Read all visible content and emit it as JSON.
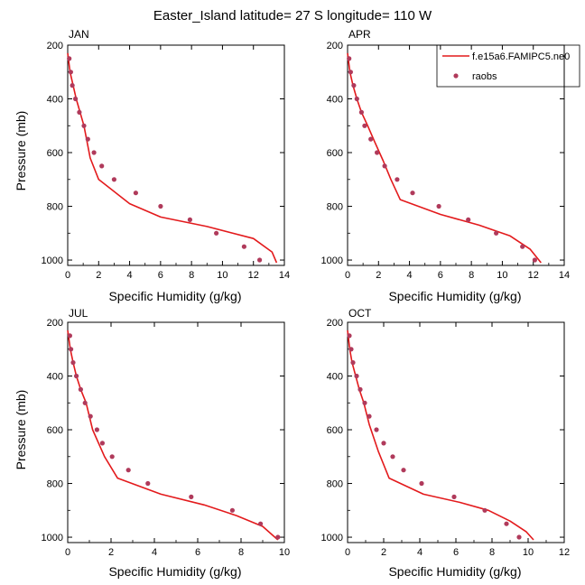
{
  "figure": {
    "title": "Easter_Island  latitude= 27 S longitude= 110 W"
  },
  "colors": {
    "model": "#e31a1c",
    "obs": "#b03a5b",
    "axis": "#000000"
  },
  "chart_data": [
    {
      "type": "line",
      "panel_label": "JAN",
      "xlabel": "Specific Humidity (g/kg)",
      "ylabel": "Pressure (mb)",
      "xlim": [
        0,
        14
      ],
      "ylim": [
        1020,
        200
      ],
      "xticks": [
        0,
        2,
        4,
        6,
        8,
        10,
        12,
        14
      ],
      "yticks": [
        200,
        400,
        600,
        800,
        1000
      ],
      "legend": {
        "placement": "top-right",
        "entries": [
          "f.e15a6.FAMIPC5.ne0",
          "raobs"
        ]
      },
      "series": [
        {
          "name": "f.e15a6.FAMIPC5.ne0",
          "kind": "line",
          "x": [
            0.0,
            0.15,
            0.35,
            0.55,
            0.8,
            1.05,
            1.45,
            2.0,
            4.0,
            6.0,
            9.0,
            12.0,
            13.2,
            13.5
          ],
          "y": [
            230,
            300,
            350,
            400,
            450,
            500,
            620,
            700,
            790,
            840,
            875,
            920,
            970,
            1010
          ]
        },
        {
          "name": "raobs",
          "kind": "scatter",
          "x": [
            0.1,
            0.2,
            0.3,
            0.5,
            0.75,
            1.05,
            1.3,
            1.7,
            2.2,
            3.0,
            4.4,
            6.0,
            7.9,
            9.6,
            11.4,
            12.4
          ],
          "y": [
            250,
            300,
            350,
            400,
            450,
            500,
            550,
            600,
            650,
            700,
            750,
            800,
            850,
            900,
            950,
            1000
          ]
        }
      ]
    },
    {
      "type": "line",
      "panel_label": "APR",
      "xlabel": "Specific Humidity (g/kg)",
      "ylabel": "",
      "xlim": [
        0,
        14
      ],
      "ylim": [
        1020,
        200
      ],
      "xticks": [
        0,
        2,
        4,
        6,
        8,
        10,
        12,
        14
      ],
      "yticks": [
        200,
        400,
        600,
        800,
        1000
      ],
      "series": [
        {
          "name": "f.e15a6.FAMIPC5.ne0",
          "kind": "line",
          "x": [
            0.0,
            0.15,
            0.35,
            0.6,
            0.9,
            1.3,
            1.75,
            2.3,
            2.8,
            3.4,
            6.0,
            8.5,
            10.5,
            11.8,
            12.5
          ],
          "y": [
            230,
            300,
            350,
            400,
            450,
            500,
            560,
            630,
            700,
            775,
            830,
            870,
            910,
            960,
            1010
          ]
        },
        {
          "name": "raobs",
          "kind": "scatter",
          "x": [
            0.1,
            0.2,
            0.4,
            0.6,
            0.9,
            1.1,
            1.5,
            1.9,
            2.4,
            3.2,
            4.2,
            5.9,
            7.8,
            9.6,
            11.3,
            12.1
          ],
          "y": [
            250,
            300,
            350,
            400,
            450,
            500,
            550,
            600,
            650,
            700,
            750,
            800,
            850,
            900,
            950,
            1000
          ]
        }
      ]
    },
    {
      "type": "line",
      "panel_label": "JUL",
      "xlabel": "Specific Humidity (g/kg)",
      "ylabel": "Pressure (mb)",
      "xlim": [
        0,
        10
      ],
      "ylim": [
        1020,
        200
      ],
      "xticks": [
        0,
        2,
        4,
        6,
        8,
        10
      ],
      "yticks": [
        200,
        400,
        600,
        800,
        1000
      ],
      "series": [
        {
          "name": "f.e15a6.FAMIPC5.ne0",
          "kind": "line",
          "x": [
            0.0,
            0.12,
            0.25,
            0.4,
            0.6,
            0.85,
            1.15,
            1.7,
            2.3,
            4.3,
            6.3,
            7.8,
            9.0,
            9.7
          ],
          "y": [
            230,
            300,
            350,
            400,
            450,
            500,
            600,
            700,
            780,
            840,
            880,
            920,
            960,
            1010
          ]
        },
        {
          "name": "raobs",
          "kind": "scatter",
          "x": [
            0.1,
            0.15,
            0.25,
            0.4,
            0.6,
            0.8,
            1.05,
            1.35,
            1.6,
            2.05,
            2.8,
            3.7,
            5.7,
            7.6,
            8.9,
            9.7
          ],
          "y": [
            250,
            300,
            350,
            400,
            450,
            500,
            550,
            600,
            650,
            700,
            750,
            800,
            850,
            900,
            950,
            1000
          ]
        }
      ]
    },
    {
      "type": "line",
      "panel_label": "OCT",
      "xlabel": "Specific Humidity (g/kg)",
      "ylabel": "",
      "xlim": [
        0,
        12
      ],
      "ylim": [
        1020,
        200
      ],
      "xticks": [
        0,
        2,
        4,
        6,
        8,
        10,
        12
      ],
      "yticks": [
        200,
        400,
        600,
        800,
        1000
      ],
      "series": [
        {
          "name": "f.e15a6.FAMIPC5.ne0",
          "kind": "line",
          "x": [
            0.0,
            0.12,
            0.25,
            0.45,
            0.65,
            0.9,
            1.2,
            1.7,
            2.3,
            4.2,
            6.2,
            7.8,
            9.0,
            9.9,
            10.3
          ],
          "y": [
            230,
            300,
            350,
            400,
            450,
            500,
            580,
            680,
            780,
            840,
            870,
            900,
            940,
            980,
            1010
          ]
        },
        {
          "name": "raobs",
          "kind": "scatter",
          "x": [
            0.1,
            0.2,
            0.3,
            0.5,
            0.7,
            0.95,
            1.2,
            1.6,
            2.0,
            2.5,
            3.1,
            4.1,
            5.9,
            7.6,
            8.8,
            9.5
          ],
          "y": [
            250,
            300,
            350,
            400,
            450,
            500,
            550,
            600,
            650,
            700,
            750,
            800,
            850,
            900,
            950,
            1000
          ]
        }
      ]
    }
  ]
}
